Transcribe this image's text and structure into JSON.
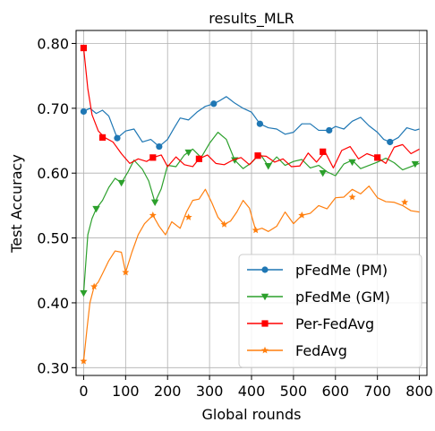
{
  "chart_data": {
    "type": "line",
    "title": "results_MLR",
    "xlabel": "Global rounds",
    "ylabel": "Test Accuracy",
    "xlim": [
      -18,
      818
    ],
    "ylim": [
      0.288,
      0.82
    ],
    "xticks": [
      0,
      100,
      200,
      300,
      400,
      500,
      600,
      700,
      800
    ],
    "yticks": [
      0.3,
      0.4,
      0.5,
      0.6,
      0.7,
      0.8
    ],
    "ytick_labels": [
      "0.30",
      "0.40",
      "0.50",
      "0.60",
      "0.70",
      "0.80"
    ],
    "grid": true,
    "legend_position": "lower-right",
    "series": [
      {
        "name": "pFedMe (PM)",
        "color": "#1f77b4",
        "marker": "circle",
        "x": [
          0,
          15,
          30,
          45,
          60,
          80,
          100,
          120,
          140,
          160,
          180,
          200,
          215,
          230,
          250,
          270,
          290,
          310,
          325,
          340,
          360,
          380,
          400,
          420,
          440,
          460,
          480,
          500,
          520,
          540,
          560,
          585,
          600,
          620,
          640,
          660,
          680,
          700,
          715,
          730,
          750,
          770,
          790,
          800
        ],
        "y": [
          0.695,
          0.7,
          0.692,
          0.697,
          0.688,
          0.654,
          0.665,
          0.668,
          0.648,
          0.652,
          0.641,
          0.652,
          0.669,
          0.685,
          0.682,
          0.694,
          0.703,
          0.707,
          0.712,
          0.718,
          0.708,
          0.7,
          0.694,
          0.676,
          0.67,
          0.668,
          0.66,
          0.663,
          0.676,
          0.676,
          0.666,
          0.666,
          0.672,
          0.668,
          0.68,
          0.686,
          0.673,
          0.663,
          0.652,
          0.648,
          0.655,
          0.67,
          0.666,
          0.668
        ],
        "markers_x": [
          0,
          80,
          180,
          310,
          420,
          585,
          730
        ],
        "markers_y": [
          0.695,
          0.654,
          0.641,
          0.707,
          0.676,
          0.666,
          0.648
        ]
      },
      {
        "name": "pFedMe (GM)",
        "color": "#2ca02c",
        "marker": "triangle-down",
        "x": [
          0,
          10,
          20,
          30,
          45,
          60,
          75,
          90,
          105,
          120,
          140,
          155,
          170,
          185,
          200,
          220,
          240,
          260,
          280,
          300,
          320,
          340,
          360,
          380,
          400,
          420,
          440,
          460,
          480,
          500,
          520,
          540,
          560,
          580,
          600,
          620,
          640,
          660,
          680,
          700,
          720,
          740,
          760,
          780,
          800
        ],
        "y": [
          0.415,
          0.505,
          0.53,
          0.545,
          0.558,
          0.578,
          0.592,
          0.585,
          0.601,
          0.62,
          0.606,
          0.588,
          0.555,
          0.576,
          0.612,
          0.61,
          0.628,
          0.637,
          0.624,
          0.646,
          0.663,
          0.652,
          0.62,
          0.607,
          0.616,
          0.63,
          0.611,
          0.625,
          0.612,
          0.618,
          0.621,
          0.608,
          0.612,
          0.602,
          0.596,
          0.614,
          0.62,
          0.607,
          0.612,
          0.617,
          0.623,
          0.616,
          0.605,
          0.61,
          0.615
        ],
        "markers_x": [
          0,
          30,
          90,
          170,
          250,
          360,
          440,
          570,
          640,
          790
        ],
        "markers_y": [
          0.415,
          0.545,
          0.585,
          0.555,
          0.632,
          0.62,
          0.611,
          0.6,
          0.617,
          0.614
        ]
      },
      {
        "name": "Per-FedAvg",
        "color": "#ff0000",
        "marker": "square",
        "x": [
          0,
          10,
          20,
          35,
          50,
          70,
          90,
          110,
          130,
          150,
          165,
          185,
          200,
          220,
          240,
          260,
          275,
          295,
          315,
          335,
          355,
          375,
          395,
          415,
          435,
          455,
          475,
          495,
          515,
          535,
          555,
          575,
          595,
          615,
          635,
          655,
          675,
          700,
          720,
          740,
          760,
          780,
          800
        ],
        "y": [
          0.793,
          0.73,
          0.69,
          0.665,
          0.655,
          0.648,
          0.63,
          0.615,
          0.622,
          0.618,
          0.624,
          0.628,
          0.61,
          0.625,
          0.613,
          0.61,
          0.622,
          0.628,
          0.615,
          0.613,
          0.62,
          0.624,
          0.613,
          0.627,
          0.626,
          0.617,
          0.622,
          0.61,
          0.611,
          0.631,
          0.617,
          0.633,
          0.608,
          0.635,
          0.641,
          0.622,
          0.63,
          0.624,
          0.615,
          0.64,
          0.644,
          0.63,
          0.637
        ],
        "markers_x": [
          0,
          45,
          165,
          275,
          415,
          570,
          700
        ],
        "markers_y": [
          0.793,
          0.655,
          0.624,
          0.622,
          0.627,
          0.633,
          0.624
        ]
      },
      {
        "name": "FedAvg",
        "color": "#ff7f0e",
        "marker": "star",
        "x": [
          0,
          8,
          15,
          25,
          35,
          45,
          60,
          75,
          90,
          100,
          115,
          130,
          145,
          165,
          180,
          195,
          210,
          230,
          245,
          260,
          275,
          290,
          305,
          320,
          335,
          350,
          365,
          380,
          395,
          410,
          425,
          440,
          460,
          480,
          500,
          520,
          540,
          560,
          580,
          600,
          620,
          640,
          660,
          680,
          700,
          720,
          740,
          760,
          780,
          800
        ],
        "y": [
          0.31,
          0.36,
          0.4,
          0.425,
          0.432,
          0.445,
          0.465,
          0.48,
          0.478,
          0.447,
          0.478,
          0.505,
          0.522,
          0.535,
          0.518,
          0.505,
          0.525,
          0.515,
          0.54,
          0.558,
          0.56,
          0.575,
          0.555,
          0.532,
          0.521,
          0.526,
          0.54,
          0.558,
          0.546,
          0.512,
          0.515,
          0.51,
          0.518,
          0.54,
          0.522,
          0.535,
          0.538,
          0.55,
          0.545,
          0.562,
          0.563,
          0.575,
          0.568,
          0.58,
          0.562,
          0.556,
          0.555,
          0.55,
          0.542,
          0.54
        ],
        "markers_x": [
          0,
          25,
          100,
          165,
          250,
          335,
          410,
          520,
          640,
          765
        ],
        "markers_y": [
          0.31,
          0.425,
          0.447,
          0.535,
          0.532,
          0.521,
          0.512,
          0.535,
          0.563,
          0.555
        ]
      }
    ]
  }
}
